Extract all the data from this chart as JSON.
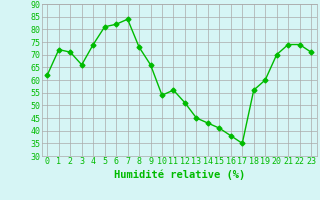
{
  "x": [
    0,
    1,
    2,
    3,
    4,
    5,
    6,
    7,
    8,
    9,
    10,
    11,
    12,
    13,
    14,
    15,
    16,
    17,
    18,
    19,
    20,
    21,
    22,
    23
  ],
  "y": [
    62,
    72,
    71,
    66,
    74,
    81,
    82,
    84,
    73,
    66,
    54,
    56,
    51,
    45,
    43,
    41,
    38,
    35,
    56,
    60,
    70,
    74,
    74,
    71
  ],
  "line_color": "#00bb00",
  "marker": "D",
  "marker_size": 2.5,
  "bg_color": "#d6f5f5",
  "grid_color": "#aaaaaa",
  "xlabel": "Humidité relative (%)",
  "xlabel_color": "#00bb00",
  "xlabel_fontsize": 7.5,
  "tick_color": "#00bb00",
  "tick_fontsize": 6,
  "ylim": [
    30,
    90
  ],
  "yticks": [
    30,
    35,
    40,
    45,
    50,
    55,
    60,
    65,
    70,
    75,
    80,
    85,
    90
  ],
  "xlim": [
    -0.5,
    23.5
  ],
  "xticks": [
    0,
    1,
    2,
    3,
    4,
    5,
    6,
    7,
    8,
    9,
    10,
    11,
    12,
    13,
    14,
    15,
    16,
    17,
    18,
    19,
    20,
    21,
    22,
    23
  ]
}
